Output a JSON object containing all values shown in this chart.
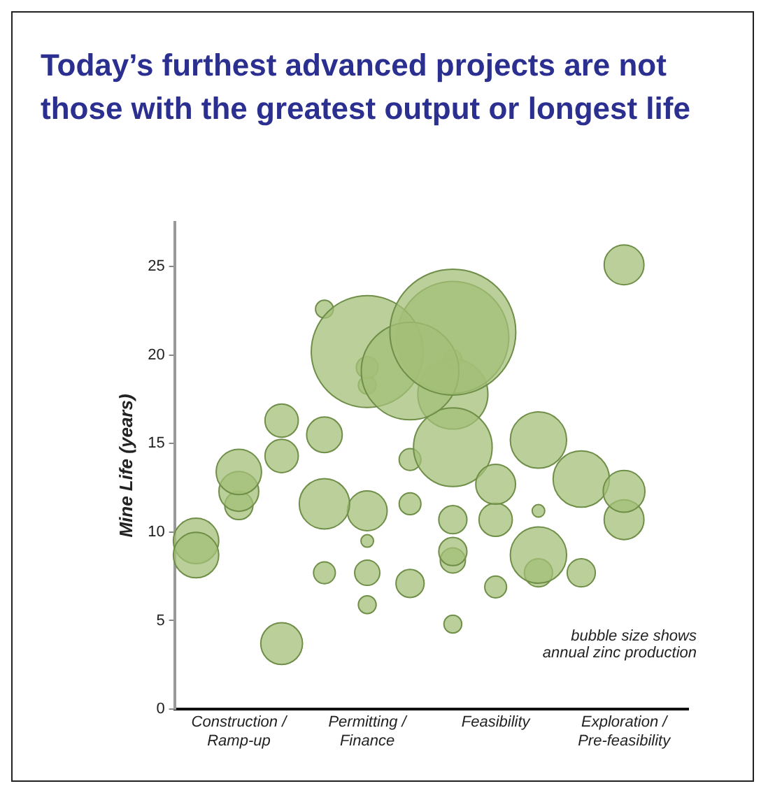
{
  "chart_data": {
    "type": "bubble",
    "title": "Today’s furthest advanced projects are not those with the greatest output or longest life",
    "ylabel": "Mine Life (years)",
    "annotations": [
      "bubble size shows annual zinc production"
    ],
    "categories": [
      null,
      "Construction / Ramp-up",
      null,
      null,
      "Permitting / Finance",
      null,
      null,
      "Feasibility",
      null,
      null,
      "Exploration / Pre-feasibility",
      null
    ],
    "series": [
      {
        "color": "#a3bf78",
        "values": [
          8.7,
          13.4,
          3.7,
          11.6,
          20.2,
          19.1,
          21.3,
          12.7,
          15.2,
          13.0,
          12.3,
          null
        ],
        "sizes": [
          0.13,
          0.13,
          0.11,
          0.16,
          0.79,
          0.6,
          1,
          0.1,
          0.2,
          0.2,
          0.11,
          null
        ]
      },
      {
        "color": "#a3bf78",
        "values": [
          9.5,
          12.3,
          16.3,
          15.5,
          11.2,
          7.1,
          21,
          10.7,
          8.7,
          7.7,
          25.1,
          null
        ],
        "sizes": [
          0.13,
          0.1,
          0.07,
          0.08,
          0.1,
          0.05,
          0.79,
          0.07,
          0.2,
          0.05,
          0.1,
          null
        ]
      },
      {
        "color": "#a3bf78",
        "values": [
          null,
          11.5,
          14.3,
          7.7,
          7.7,
          14.1,
          14.8,
          6.9,
          7.7,
          null,
          10.7,
          null
        ],
        "sizes": [
          null,
          0.05,
          0.07,
          0.03,
          0.04,
          0.03,
          0.39,
          0.03,
          0.05,
          null,
          0.1,
          null
        ]
      },
      {
        "color": "#a3bf78",
        "values": [
          null,
          null,
          null,
          22.6,
          19.3,
          11.6,
          17.8,
          null,
          11.2,
          null,
          null,
          null
        ],
        "sizes": [
          null,
          null,
          null,
          0.02,
          0.03,
          0.03,
          0.31,
          null,
          0.01,
          null,
          null,
          null
        ]
      },
      {
        "color": "#a3bf78",
        "values": [
          null,
          null,
          null,
          null,
          18.3,
          null,
          10.7,
          null,
          null,
          null,
          null,
          null
        ],
        "sizes": [
          null,
          null,
          null,
          null,
          0.02,
          null,
          0.05,
          null,
          null,
          null,
          null,
          null
        ]
      },
      {
        "color": "#a3bf78",
        "values": [
          null,
          null,
          null,
          null,
          5.9,
          null,
          8.9,
          null,
          null,
          null,
          null,
          null
        ],
        "sizes": [
          null,
          null,
          null,
          null,
          0.02,
          null,
          0.05,
          null,
          null,
          null,
          null,
          null
        ]
      },
      {
        "color": "#a3bf78",
        "values": [
          null,
          null,
          null,
          null,
          9.5,
          null,
          8.4,
          null,
          null,
          null,
          null,
          null
        ],
        "sizes": [
          null,
          null,
          null,
          null,
          0.01,
          null,
          0.04,
          null,
          null,
          null,
          null,
          null
        ]
      },
      {
        "color": "#a3bf78",
        "values": [
          null,
          null,
          null,
          null,
          null,
          null,
          4.8,
          null,
          null,
          null,
          null,
          null
        ],
        "sizes": [
          null,
          null,
          null,
          null,
          null,
          null,
          0.02,
          null,
          null,
          null,
          null,
          null
        ]
      },
      {
        "color": "#a3bf78",
        "values": [
          null,
          null,
          null,
          null,
          null,
          null,
          19.8,
          null,
          null,
          null,
          null,
          null
        ],
        "sizes": [
          null,
          null,
          null,
          null,
          null,
          null,
          0.02,
          null,
          null,
          null,
          null,
          null
        ]
      }
    ],
    "ylim": [
      0,
      27.5
    ],
    "yticks": [
      0,
      5,
      10,
      15,
      20,
      25
    ],
    "grid": false,
    "legend": false
  }
}
